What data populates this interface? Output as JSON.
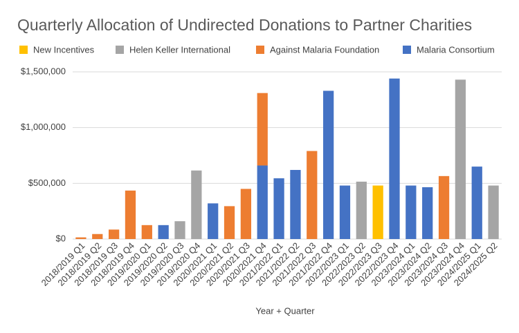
{
  "chart_data": {
    "type": "stacked_bar",
    "title": "Quarterly Allocation of Undirected Donations to Partner Charities",
    "x_label": "Year + Quarter",
    "categories": [
      "2018/2019 Q1",
      "2018/2019 Q2",
      "2018/2019 Q3",
      "2018/2019 Q4",
      "2019/2020 Q1",
      "2019/2020 Q2",
      "2019/2020 Q3",
      "2019/2020 Q4",
      "2020/2021 Q1",
      "2020/2021 Q2",
      "2020/2021 Q3",
      "2020/2021 Q4",
      "2021/2022 Q1",
      "2021/2022 Q2",
      "2021/2022 Q3",
      "2021/2022 Q4",
      "2022/2023 Q1",
      "2022/2023 Q2",
      "2022/2023 Q3",
      "2022/2023 Q4",
      "2023/2024 Q1",
      "2023/2024 Q2",
      "2023/2024 Q3",
      "2023/2024 Q4",
      "2024/2025 Q1",
      "2024/2025 Q2"
    ],
    "series": [
      {
        "name": "New Incentives",
        "color": "#FFC000",
        "values": [
          null,
          null,
          null,
          null,
          null,
          null,
          null,
          null,
          null,
          null,
          null,
          null,
          null,
          null,
          null,
          null,
          null,
          null,
          480000,
          null,
          null,
          null,
          null,
          null,
          null,
          null
        ]
      },
      {
        "name": "Helen Keller International",
        "color": "#A5A5A5",
        "values": [
          null,
          null,
          null,
          null,
          null,
          null,
          160000,
          615000,
          null,
          null,
          null,
          null,
          null,
          null,
          null,
          null,
          null,
          515000,
          null,
          null,
          null,
          null,
          null,
          1430000,
          null,
          480000
        ]
      },
      {
        "name": "Against Malaria Foundation",
        "color": "#ED7D31",
        "values": [
          15000,
          45000,
          85000,
          435000,
          125000,
          null,
          null,
          null,
          null,
          295000,
          450000,
          650000,
          null,
          null,
          790000,
          null,
          null,
          null,
          null,
          null,
          null,
          null,
          565000,
          null,
          null,
          null
        ]
      },
      {
        "name": "Malaria Consortium",
        "color": "#4472C4",
        "values": [
          null,
          null,
          null,
          null,
          null,
          125000,
          null,
          null,
          320000,
          null,
          null,
          660000,
          545000,
          620000,
          null,
          1330000,
          480000,
          null,
          null,
          1440000,
          480000,
          465000,
          null,
          null,
          650000,
          null
        ]
      }
    ],
    "ylim": [
      0,
      1500000
    ],
    "yticks": [
      {
        "value": 0,
        "label": "$0"
      },
      {
        "value": 500000,
        "label": "$500,000"
      },
      {
        "value": 1000000,
        "label": "$1,000,000"
      },
      {
        "value": 1500000,
        "label": "$1,500,000"
      }
    ],
    "grid": true,
    "legend": "top"
  }
}
